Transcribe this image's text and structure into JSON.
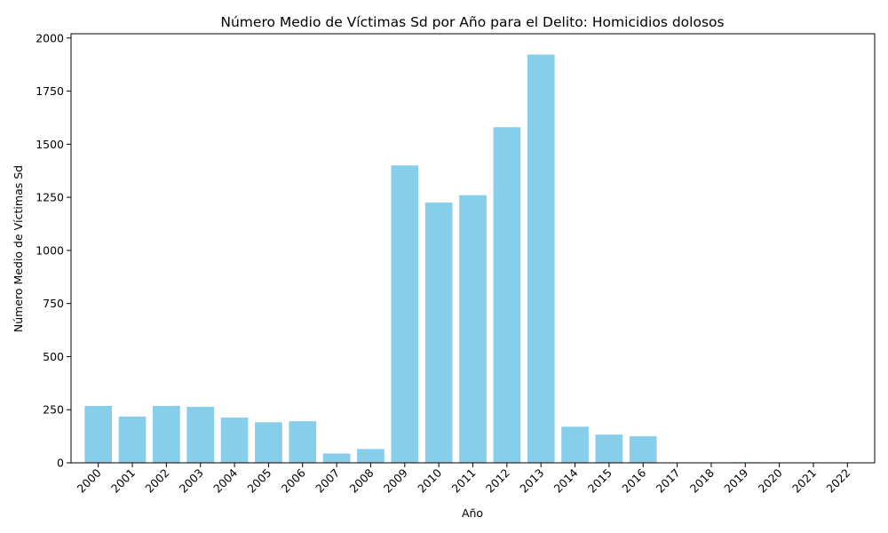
{
  "chart_data": {
    "type": "bar",
    "title": "Número Medio de Víctimas Sd por Año para el Delito: Homicidios dolosos",
    "xlabel": "Año",
    "ylabel": "Número Medio de Víctimas Sd",
    "categories": [
      "2000",
      "2001",
      "2002",
      "2003",
      "2004",
      "2005",
      "2006",
      "2007",
      "2008",
      "2009",
      "2010",
      "2011",
      "2012",
      "2013",
      "2014",
      "2015",
      "2016",
      "2017",
      "2018",
      "2019",
      "2020",
      "2021",
      "2022"
    ],
    "values": [
      268,
      218,
      268,
      264,
      213,
      191,
      196,
      44,
      65,
      1400,
      1225,
      1260,
      1580,
      1922,
      170,
      133,
      125,
      0,
      0,
      3,
      2,
      0,
      0
    ],
    "ylim": [
      0,
      2020
    ],
    "yticks": [
      0,
      250,
      500,
      750,
      1000,
      1250,
      1500,
      1750,
      2000
    ],
    "bar_color": "#87ceeb",
    "grid": false,
    "legend": "none"
  }
}
